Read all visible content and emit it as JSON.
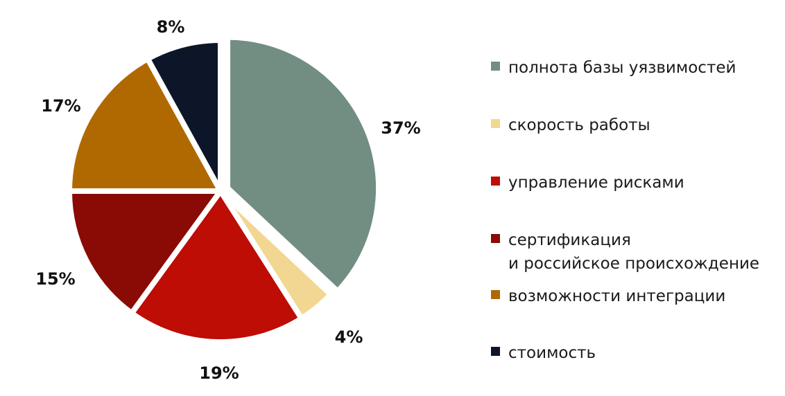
{
  "chart_data": {
    "type": "pie",
    "title": "",
    "slices": [
      {
        "name": "полнота базы уязвимостей",
        "value": 37,
        "label": "37%",
        "color": "#728e82"
      },
      {
        "name": "скорость работы",
        "value": 4,
        "label": "4%",
        "color": "#f2d792"
      },
      {
        "name": "управление рисками",
        "value": 19,
        "label": "19%",
        "color": "#bd0d04"
      },
      {
        "name": "сертификация и российское происхождение",
        "value": 15,
        "label": "15%",
        "color": "#8a0b05"
      },
      {
        "name": "возможности интеграции",
        "value": 17,
        "label": "17%",
        "color": "#b06900"
      },
      {
        "name": "стоимость",
        "value": 8,
        "label": "8%",
        "color": "#0c1628"
      }
    ],
    "start_angle": "12 o'clock",
    "direction": "clockwise",
    "exploded_slice": "полнота базы уязвимостей",
    "legend_position": "right"
  },
  "legend": [
    {
      "lines": [
        "полнота базы уязвимостей"
      ]
    },
    {
      "lines": [
        "скорость работы"
      ]
    },
    {
      "lines": [
        "управление рисками"
      ]
    },
    {
      "lines": [
        "сертификация",
        "и российское происхождение"
      ]
    },
    {
      "lines": [
        "возможности интеграции"
      ]
    },
    {
      "lines": [
        "стоимость"
      ]
    }
  ]
}
